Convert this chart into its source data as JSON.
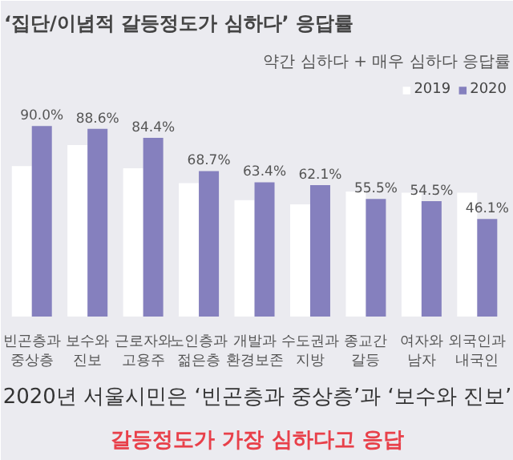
{
  "chart_data": {
    "type": "bar",
    "title": "‘집단/이념적 갈등정도가 심하다’ 응답률",
    "subtitle": "약간 심하다 + 매우 심하다 응답률",
    "categories": [
      "빈곤층과\n중상층",
      "보수와\n진보",
      "근로자와\n고용주",
      "노인층과\n젊은층",
      "개발과\n환경보존",
      "수도권과\n지방",
      "종교간\n갈등",
      "여자와\n남자",
      "외국인과\n내국인"
    ],
    "series": [
      {
        "name": "2019",
        "color": "#ffffff",
        "values": [
          71,
          81,
          70,
          63,
          55,
          53,
          59,
          58.5,
          58.5
        ]
      },
      {
        "name": "2020",
        "color": "#8580be",
        "values": [
          90.0,
          88.6,
          84.4,
          68.7,
          63.4,
          62.1,
          55.5,
          54.5,
          46.1
        ],
        "value_labels": [
          "90.0%",
          "88.6%",
          "84.4%",
          "68.7%",
          "63.4%",
          "62.1%",
          "55.5%",
          "54.5%",
          "46.1%"
        ]
      }
    ],
    "ylim": [
      0,
      112
    ],
    "grid": false,
    "legend": "top right",
    "tick_labels": "x",
    "annotations": [
      "2020년 서울시민은 ‘빈곤층과 중상층’과 ‘보수와 진보’",
      "갈등정도가 가장 심하다고 응답"
    ]
  }
}
